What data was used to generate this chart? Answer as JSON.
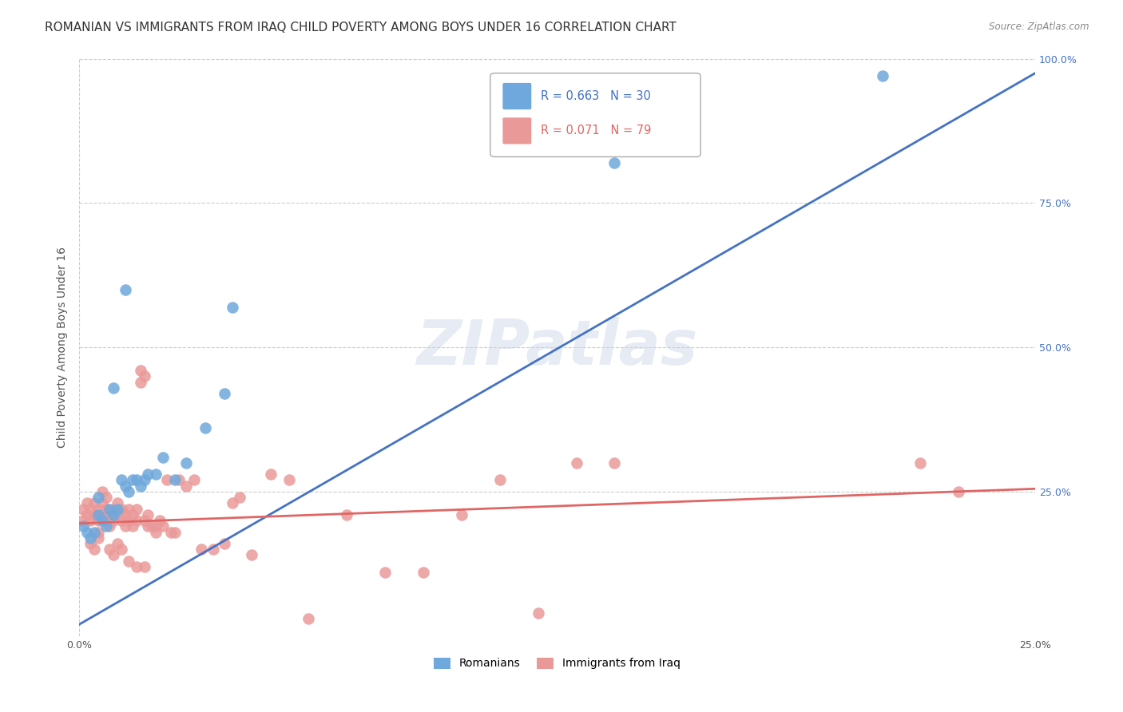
{
  "title": "ROMANIAN VS IMMIGRANTS FROM IRAQ CHILD POVERTY AMONG BOYS UNDER 16 CORRELATION CHART",
  "source": "Source: ZipAtlas.com",
  "ylabel": "Child Poverty Among Boys Under 16",
  "xlim": [
    0.0,
    0.25
  ],
  "ylim": [
    0.0,
    1.0
  ],
  "ytick_positions": [
    0.0,
    0.25,
    0.5,
    0.75,
    1.0
  ],
  "ytick_labels": [
    "",
    "25.0%",
    "50.0%",
    "75.0%",
    "100.0%"
  ],
  "xtick_positions": [
    0.0,
    0.25
  ],
  "xtick_labels": [
    "0.0%",
    "25.0%"
  ],
  "romanian_color": "#6fa8dc",
  "iraq_color": "#ea9999",
  "romanian_line_color": "#4472c4",
  "iraq_line_color": "#e06666",
  "legend_romanian_R": "0.663",
  "legend_romanian_N": "30",
  "legend_iraq_R": "0.071",
  "legend_iraq_N": "79",
  "legend_label_romanian": "Romanians",
  "legend_label_iraq": "Immigrants from Iraq",
  "watermark": "ZIPatlas",
  "romanian_line_x0": 0.0,
  "romanian_line_y0": 0.02,
  "romanian_line_x1": 0.25,
  "romanian_line_y1": 0.975,
  "iraq_line_x0": 0.0,
  "iraq_line_y0": 0.195,
  "iraq_line_x1": 0.25,
  "iraq_line_y1": 0.255,
  "romanian_scatter_x": [
    0.001,
    0.002,
    0.003,
    0.004,
    0.005,
    0.006,
    0.007,
    0.008,
    0.009,
    0.01,
    0.011,
    0.012,
    0.013,
    0.014,
    0.015,
    0.016,
    0.017,
    0.018,
    0.02,
    0.022,
    0.025,
    0.028,
    0.033,
    0.038,
    0.005,
    0.04,
    0.14,
    0.21,
    0.009,
    0.012
  ],
  "romanian_scatter_y": [
    0.19,
    0.18,
    0.17,
    0.18,
    0.21,
    0.2,
    0.19,
    0.22,
    0.21,
    0.22,
    0.27,
    0.26,
    0.25,
    0.27,
    0.27,
    0.26,
    0.27,
    0.28,
    0.28,
    0.31,
    0.27,
    0.3,
    0.36,
    0.42,
    0.24,
    0.57,
    0.82,
    0.97,
    0.43,
    0.6
  ],
  "iraq_scatter_x": [
    0.001,
    0.001,
    0.002,
    0.002,
    0.003,
    0.003,
    0.004,
    0.004,
    0.005,
    0.005,
    0.005,
    0.006,
    0.006,
    0.007,
    0.007,
    0.008,
    0.008,
    0.009,
    0.009,
    0.01,
    0.01,
    0.011,
    0.011,
    0.012,
    0.012,
    0.013,
    0.013,
    0.014,
    0.014,
    0.015,
    0.015,
    0.016,
    0.016,
    0.017,
    0.017,
    0.018,
    0.019,
    0.02,
    0.021,
    0.022,
    0.023,
    0.024,
    0.025,
    0.026,
    0.028,
    0.03,
    0.032,
    0.035,
    0.038,
    0.04,
    0.042,
    0.045,
    0.05,
    0.055,
    0.06,
    0.07,
    0.08,
    0.09,
    0.1,
    0.11,
    0.12,
    0.13,
    0.14,
    0.003,
    0.004,
    0.005,
    0.006,
    0.007,
    0.008,
    0.009,
    0.01,
    0.011,
    0.013,
    0.015,
    0.017,
    0.018,
    0.02,
    0.22,
    0.23
  ],
  "iraq_scatter_y": [
    0.2,
    0.22,
    0.21,
    0.23,
    0.2,
    0.22,
    0.21,
    0.23,
    0.2,
    0.22,
    0.18,
    0.21,
    0.23,
    0.2,
    0.22,
    0.21,
    0.19,
    0.22,
    0.2,
    0.21,
    0.23,
    0.22,
    0.2,
    0.21,
    0.19,
    0.22,
    0.2,
    0.21,
    0.19,
    0.22,
    0.2,
    0.46,
    0.44,
    0.45,
    0.2,
    0.21,
    0.19,
    0.18,
    0.2,
    0.19,
    0.27,
    0.18,
    0.18,
    0.27,
    0.26,
    0.27,
    0.15,
    0.15,
    0.16,
    0.23,
    0.24,
    0.14,
    0.28,
    0.27,
    0.03,
    0.21,
    0.11,
    0.11,
    0.21,
    0.27,
    0.04,
    0.3,
    0.3,
    0.16,
    0.15,
    0.17,
    0.25,
    0.24,
    0.15,
    0.14,
    0.16,
    0.15,
    0.13,
    0.12,
    0.12,
    0.19,
    0.19,
    0.3,
    0.25
  ],
  "background_color": "#ffffff",
  "title_fontsize": 11,
  "axis_label_fontsize": 10,
  "tick_fontsize": 9,
  "legend_fontsize": 10.5
}
